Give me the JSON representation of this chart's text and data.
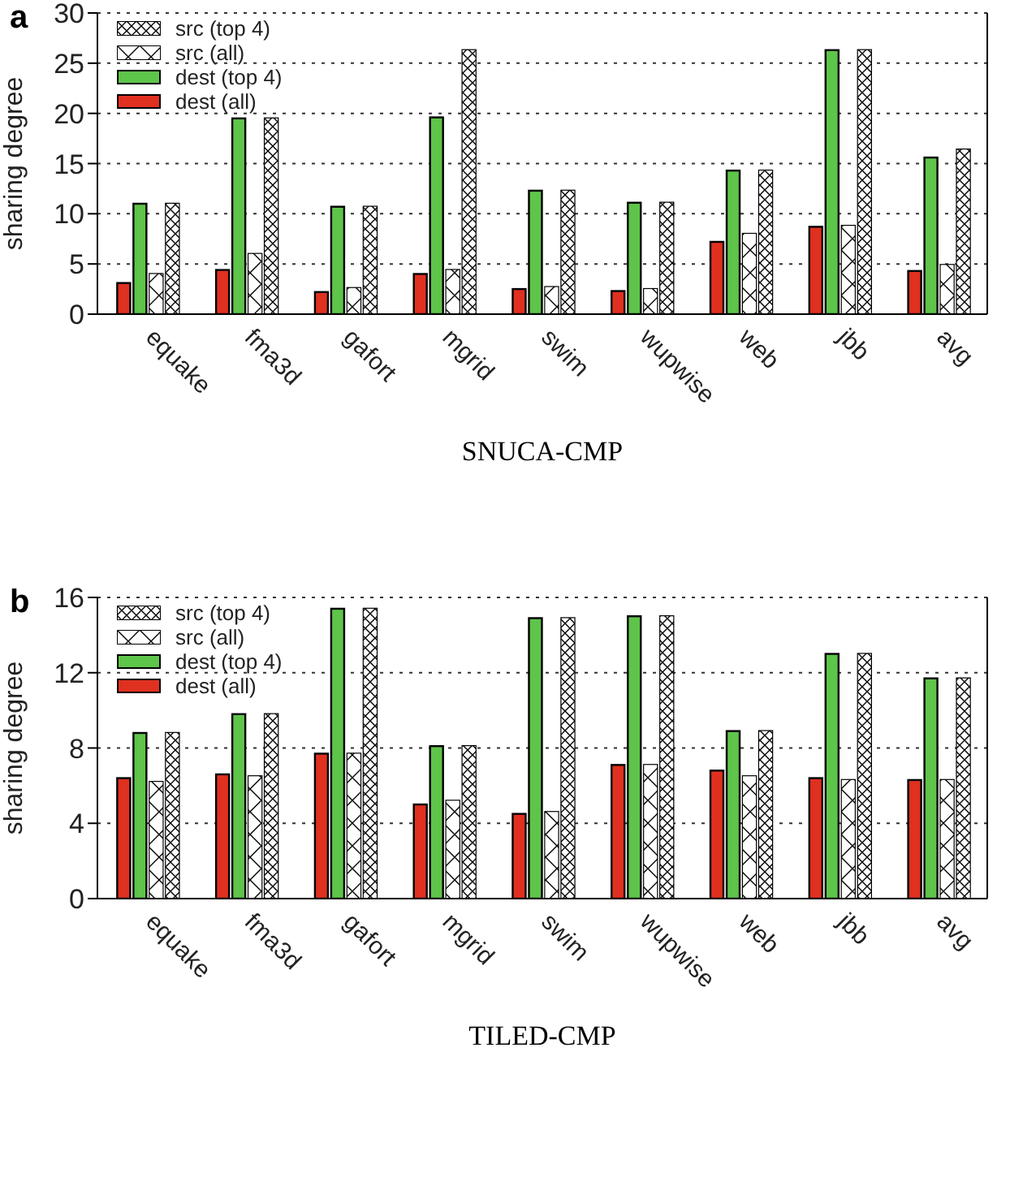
{
  "chart_data": [
    {
      "type": "bar",
      "title": "a",
      "xlabel": "SNUCA-CMP",
      "ylabel": "sharing degree",
      "categories": [
        "equake",
        "fma3d",
        "gafort",
        "mgrid",
        "swim",
        "wupwise",
        "web",
        "jbb",
        "avg"
      ],
      "series": [
        {
          "name": "dest (all)",
          "color": "#e03020",
          "values": [
            3.1,
            4.4,
            2.2,
            4.0,
            2.5,
            2.3,
            7.2,
            8.7,
            4.3
          ]
        },
        {
          "name": "dest (top 4)",
          "color": "#5ec44a",
          "values": [
            11.0,
            19.5,
            10.7,
            19.6,
            12.3,
            11.1,
            14.3,
            26.3,
            15.6
          ]
        },
        {
          "name": "src (all)",
          "color": "#ffffff",
          "values": [
            4.0,
            6.0,
            2.6,
            4.4,
            2.7,
            2.5,
            8.0,
            8.8,
            4.9
          ]
        },
        {
          "name": "src (top 4)",
          "color": "#ffffff",
          "values": [
            11.0,
            19.5,
            10.7,
            26.3,
            12.3,
            11.1,
            14.3,
            26.3,
            16.4
          ]
        }
      ],
      "ylim": [
        0,
        30
      ],
      "yticks": [
        0,
        5,
        10,
        15,
        20,
        25,
        30
      ],
      "grid": "y",
      "legend": "top left"
    },
    {
      "type": "bar",
      "title": "b",
      "xlabel": "TILED-CMP",
      "ylabel": "sharing degree",
      "categories": [
        "equake",
        "fma3d",
        "gafort",
        "mgrid",
        "swim",
        "wupwise",
        "web",
        "jbb",
        "avg"
      ],
      "series": [
        {
          "name": "dest (all)",
          "color": "#e03020",
          "values": [
            6.4,
            6.6,
            7.7,
            5.0,
            4.5,
            7.1,
            6.8,
            6.4,
            6.3
          ]
        },
        {
          "name": "dest (top 4)",
          "color": "#5ec44a",
          "values": [
            8.8,
            9.8,
            15.4,
            8.1,
            14.9,
            15.0,
            8.9,
            13.0,
            11.7
          ]
        },
        {
          "name": "src (all)",
          "color": "#ffffff",
          "values": [
            6.2,
            6.5,
            7.7,
            5.2,
            4.6,
            7.1,
            6.5,
            6.3,
            6.3
          ]
        },
        {
          "name": "src (top 4)",
          "color": "#ffffff",
          "values": [
            8.8,
            9.8,
            15.4,
            8.1,
            14.9,
            15.0,
            8.9,
            13.0,
            11.7
          ]
        }
      ],
      "ylim": [
        0,
        16
      ],
      "yticks": [
        0,
        4,
        8,
        12,
        16
      ],
      "grid": "y",
      "legend": "top left"
    }
  ]
}
